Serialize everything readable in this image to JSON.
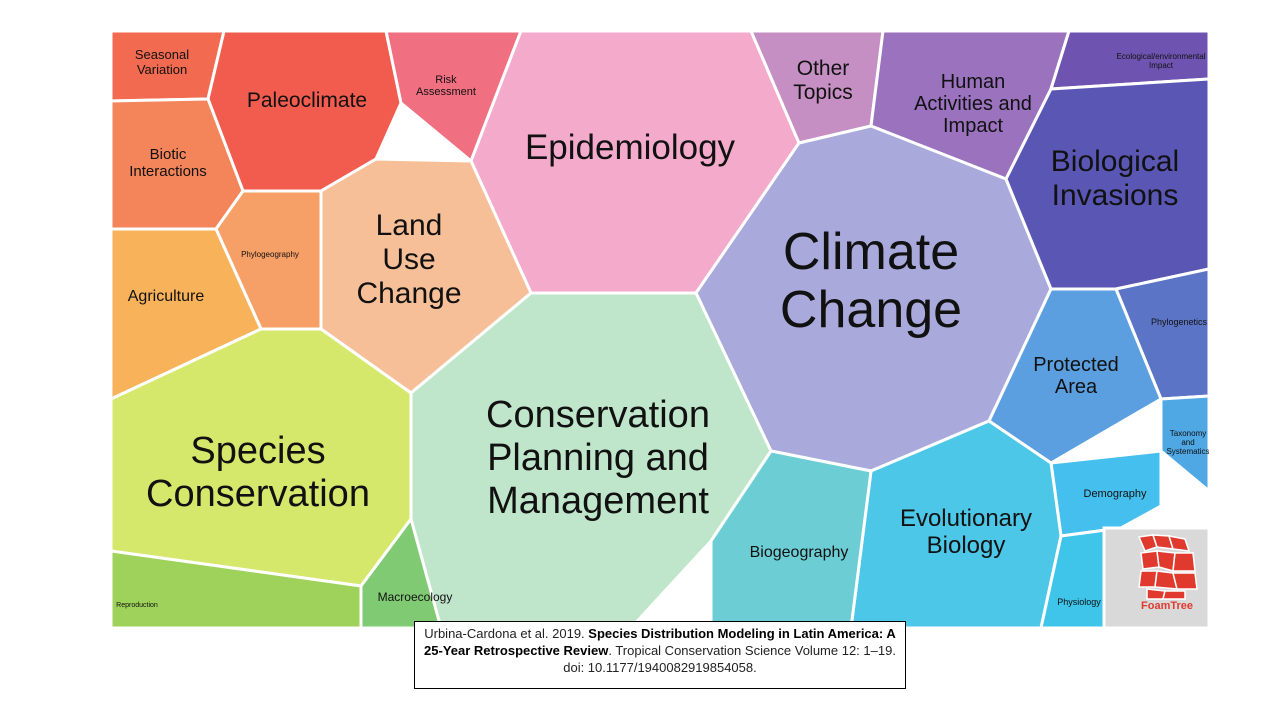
{
  "topics": [
    {
      "id": "seasonal-variation",
      "lines": [
        "Seasonal",
        "Variation"
      ],
      "color": "#f26a4f"
    },
    {
      "id": "paleoclimate",
      "lines": [
        "Paleoclimate"
      ],
      "color": "#f25c4f"
    },
    {
      "id": "risk-assessment",
      "lines": [
        "Risk",
        "Assessment"
      ],
      "color": "#f06f80"
    },
    {
      "id": "epidemiology",
      "lines": [
        "Epidemiology"
      ],
      "color": "#f4aacb"
    },
    {
      "id": "other-topics",
      "lines": [
        "Other",
        "Topics"
      ],
      "color": "#c58fc4"
    },
    {
      "id": "human-activities",
      "lines": [
        "Human",
        "Activities and",
        "Impact"
      ],
      "color": "#9a72be"
    },
    {
      "id": "ecological-impact",
      "lines": [
        "Ecological/environmental",
        "Impact"
      ],
      "color": "#6e54b0"
    },
    {
      "id": "biotic-interactions",
      "lines": [
        "Biotic",
        "Interactions"
      ],
      "color": "#f4845a"
    },
    {
      "id": "phylogeography",
      "lines": [
        "Phylogeography"
      ],
      "color": "#f6a067"
    },
    {
      "id": "land-use-change",
      "lines": [
        "Land",
        "Use",
        "Change"
      ],
      "color": "#f6bf97"
    },
    {
      "id": "climate-change",
      "lines": [
        "Climate",
        "Change"
      ],
      "color": "#a9aadb"
    },
    {
      "id": "biological-invasions",
      "lines": [
        "Biological",
        "Invasions"
      ],
      "color": "#5a56b3"
    },
    {
      "id": "agriculture",
      "lines": [
        "Agriculture"
      ],
      "color": "#f7b25a"
    },
    {
      "id": "phylogenetics",
      "lines": [
        "Phylogenetics"
      ],
      "color": "#5c74c6"
    },
    {
      "id": "protected-area",
      "lines": [
        "Protected",
        "Area"
      ],
      "color": "#5b9fe0"
    },
    {
      "id": "species-conservation",
      "lines": [
        "Species",
        "Conservation"
      ],
      "color": "#d6e86b"
    },
    {
      "id": "conservation-planning",
      "lines": [
        "Conservation",
        "Planning and",
        "Management"
      ],
      "color": "#bfe6cb"
    },
    {
      "id": "taxonomy",
      "lines": [
        "Taxonomy",
        "and",
        "Systematics"
      ],
      "color": "#4fa7e3"
    },
    {
      "id": "demography",
      "lines": [
        "Demography"
      ],
      "color": "#45c0ee"
    },
    {
      "id": "evolutionary-biology",
      "lines": [
        "Evolutionary",
        "Biology"
      ],
      "color": "#4cc7e8"
    },
    {
      "id": "biogeography",
      "lines": [
        "Biogeography"
      ],
      "color": "#6ccdd4"
    },
    {
      "id": "macroecology",
      "lines": [
        "Macroecology"
      ],
      "color": "#7fca73"
    },
    {
      "id": "reproduction",
      "lines": [
        "Reproduction"
      ],
      "color": "#9ed25a"
    },
    {
      "id": "physiology",
      "lines": [
        "Physiology"
      ],
      "color": "#3fc4ea"
    }
  ],
  "logo": {
    "text": "FoamTree",
    "color": "#e03a2e"
  },
  "citation": {
    "prefix": "Urbina-Cardona et al. 2019. ",
    "title": "Species Distribution Modeling in Latin America: A 25-Year Retrospective Review",
    "suffix": ". Tropical Conservation Science Volume 12: 1–19. doi: 10.1177/1940082919854058."
  }
}
